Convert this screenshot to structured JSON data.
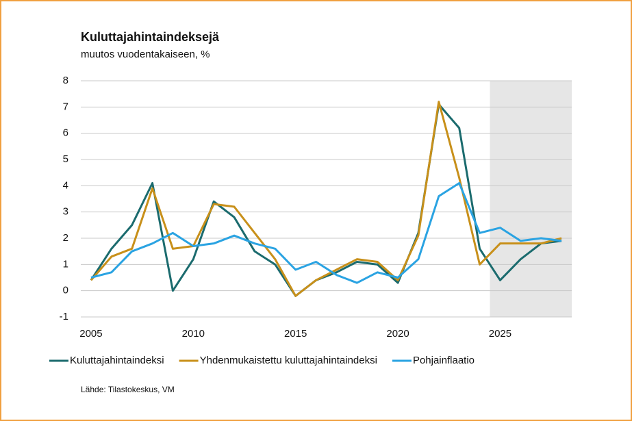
{
  "chart_data": {
    "type": "line",
    "title": "Kuluttajahintaindeksejä",
    "subtitle": "muutos vuodentakaiseen, %",
    "source": "Lähde: Tilastokeskus, VM",
    "x": [
      2005,
      2006,
      2007,
      2008,
      2009,
      2010,
      2011,
      2012,
      2013,
      2014,
      2015,
      2016,
      2017,
      2018,
      2019,
      2020,
      2021,
      2022,
      2023,
      2024,
      2025,
      2026,
      2027,
      2028
    ],
    "series": [
      {
        "name": "Kuluttajahintaindeksi",
        "color": "#1b6b6e",
        "values": [
          0.4,
          1.6,
          2.5,
          4.1,
          0.0,
          1.2,
          3.4,
          2.8,
          1.5,
          1.0,
          -0.2,
          0.4,
          0.7,
          1.1,
          1.0,
          0.3,
          2.2,
          7.1,
          6.2,
          1.6,
          0.4,
          1.2,
          1.8,
          1.9
        ]
      },
      {
        "name": "Yhdenmukaistettu kuluttajahintaindeksi",
        "color": "#c8901a",
        "values": [
          0.4,
          1.3,
          1.6,
          3.9,
          1.6,
          1.7,
          3.3,
          3.2,
          2.2,
          1.2,
          -0.2,
          0.4,
          0.8,
          1.2,
          1.1,
          0.4,
          2.1,
          7.2,
          4.3,
          1.0,
          1.8,
          1.8,
          1.8,
          2.0
        ]
      },
      {
        "name": "Pohjainflaatio",
        "color": "#2aa3e2",
        "values": [
          0.5,
          0.7,
          1.5,
          1.8,
          2.2,
          1.7,
          1.8,
          2.1,
          1.8,
          1.6,
          0.8,
          1.1,
          0.6,
          0.3,
          0.7,
          0.5,
          1.2,
          3.6,
          4.1,
          2.2,
          2.4,
          1.9,
          2.0,
          1.9
        ]
      }
    ],
    "xlim": [
      2004.5,
      2028.5
    ],
    "xticks": [
      2005,
      2010,
      2015,
      2020,
      2025
    ],
    "ylim": [
      -1,
      8
    ],
    "yticks": [
      -1,
      0,
      1,
      2,
      3,
      4,
      5,
      6,
      7,
      8
    ],
    "shade": [
      2024.5,
      2028.5
    ],
    "grid": true,
    "legend": "bottom"
  }
}
